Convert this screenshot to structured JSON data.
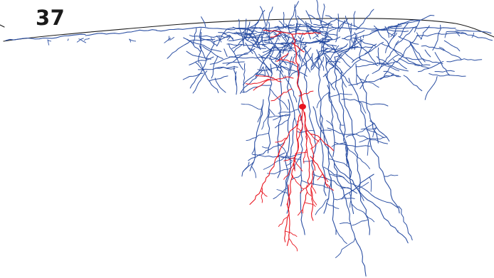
{
  "panel": {
    "label": "37"
  },
  "colors": {
    "surface": "#1a1a1a",
    "axon": "#2b4fa3",
    "dendrite": "#e8141e",
    "background": "#ffffff"
  }
}
